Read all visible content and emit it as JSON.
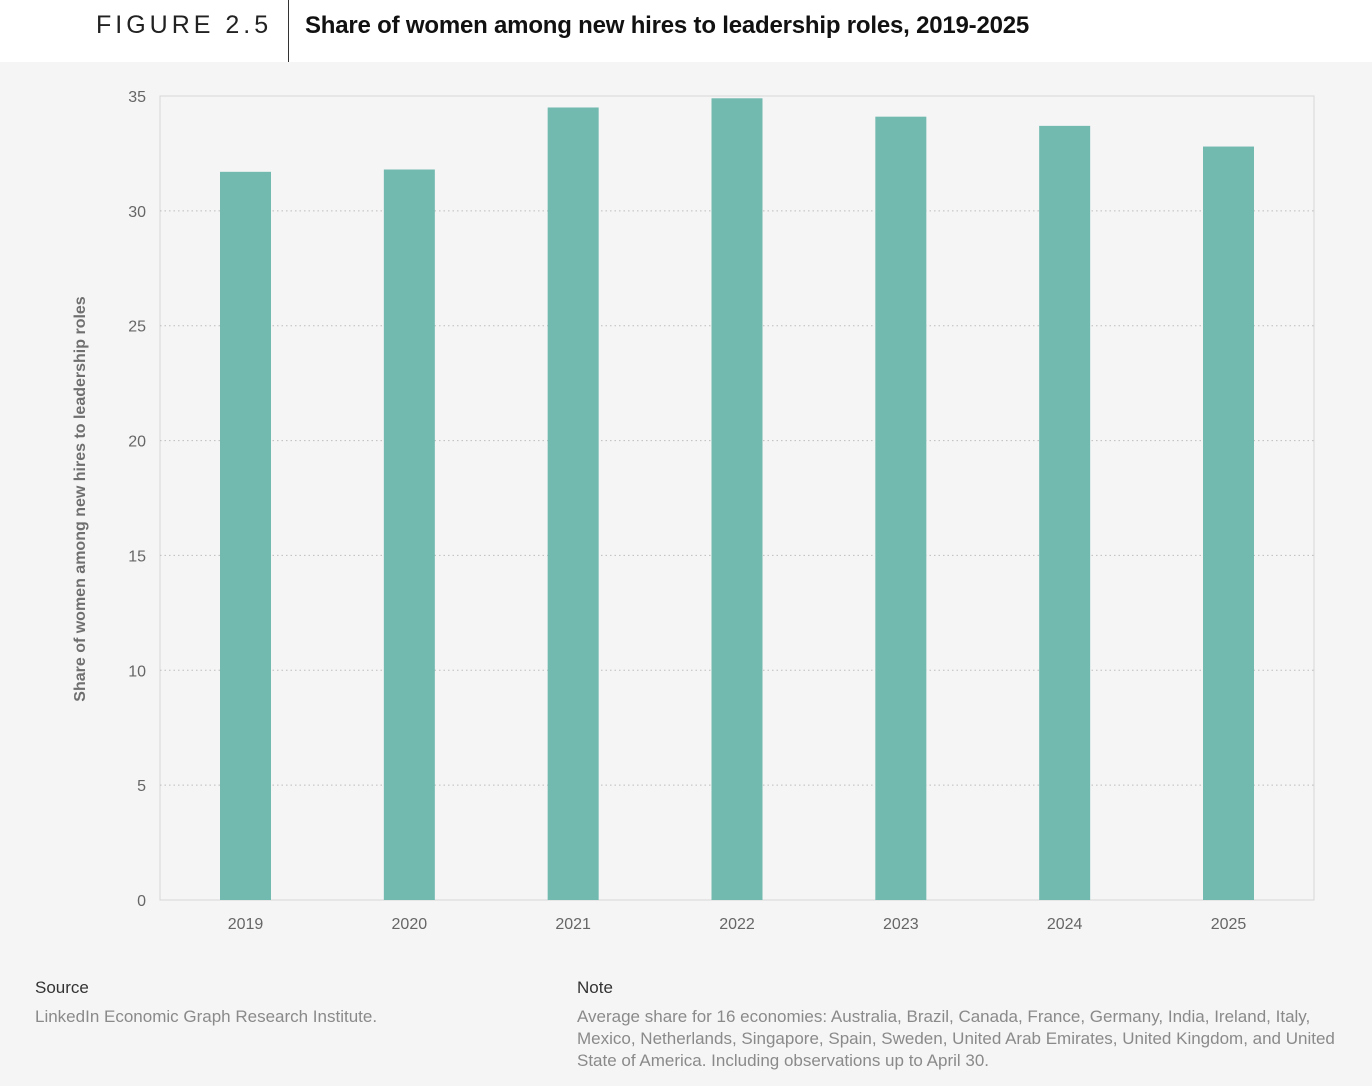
{
  "header": {
    "figure_label": "FIGURE 2.5",
    "title": "Share of women among new hires to leadership roles, 2019-2025"
  },
  "chart_data": {
    "type": "bar",
    "title": "Share of women among new hires to leadership roles, 2019-2025",
    "xlabel": "",
    "ylabel": "Share of women among new hires to leadership roles",
    "categories": [
      "2019",
      "2020",
      "2021",
      "2022",
      "2023",
      "2024",
      "2025"
    ],
    "values": [
      31.7,
      31.8,
      34.5,
      34.9,
      34.1,
      33.7,
      32.8
    ],
    "ylim": [
      0,
      35
    ],
    "yticks": [
      0,
      5,
      10,
      15,
      20,
      25,
      30,
      35
    ],
    "grid": true,
    "bar_color": "#72b9b0"
  },
  "footer": {
    "source_heading": "Source",
    "source_text": "LinkedIn Economic Graph Research Institute.",
    "note_heading": "Note",
    "note_text": "Average share for 16 economies: Australia, Brazil, Canada, France, Germany, India, Ireland, Italy, Mexico, Netherlands, Singapore, Spain, Sweden, United Arab Emirates, United Kingdom, and United State of America. Including observations up to April 30."
  }
}
